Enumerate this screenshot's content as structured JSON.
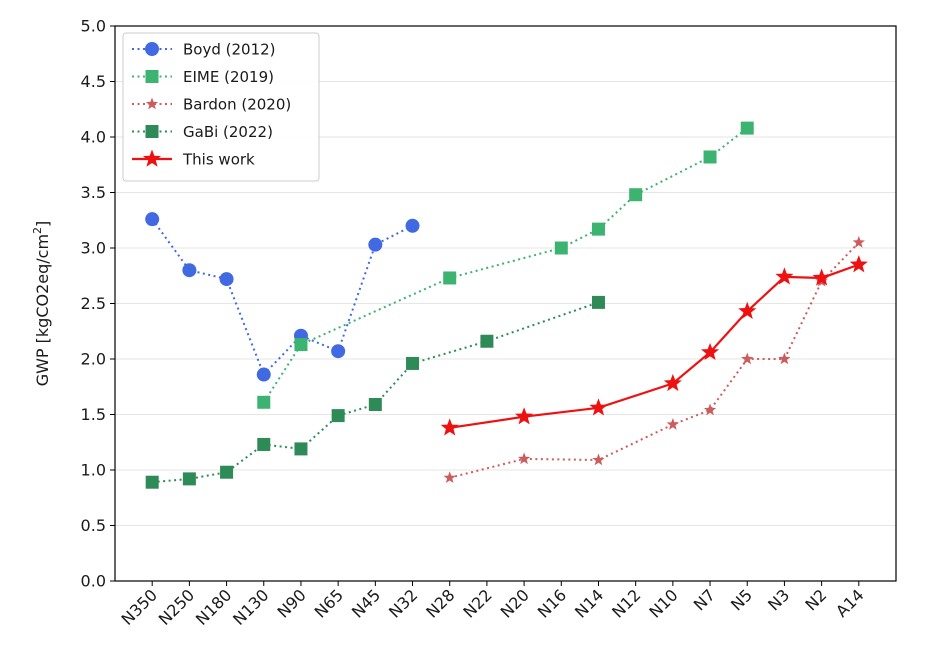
{
  "chart_data": {
    "type": "line",
    "title": "",
    "xlabel": "",
    "ylabel": "GWP [kgCO2eq/cm",
    "ylabel_sup": "2",
    "ylabel_tail": "]",
    "categories": [
      "N350",
      "N250",
      "N180",
      "N130",
      "N90",
      "N65",
      "N45",
      "N32",
      "N28",
      "N22",
      "N20",
      "N16",
      "N14",
      "N12",
      "N10",
      "N7",
      "N5",
      "N3",
      "N2",
      "A14"
    ],
    "ylim": [
      0.0,
      5.0
    ],
    "yticks": [
      "0.0",
      "0.5",
      "1.0",
      "1.5",
      "2.0",
      "2.5",
      "3.0",
      "3.5",
      "4.0",
      "4.5",
      "5.0"
    ],
    "grid": "horizontal",
    "legend_position": "top-left",
    "series": [
      {
        "name": "Boyd (2012)",
        "color": "#4169e1",
        "marker": "circle",
        "line": "dotted",
        "points": [
          [
            "N350",
            3.26
          ],
          [
            "N250",
            2.8
          ],
          [
            "N180",
            2.72
          ],
          [
            "N130",
            1.86
          ],
          [
            "N90",
            2.21
          ],
          [
            "N65",
            2.07
          ],
          [
            "N45",
            3.03
          ],
          [
            "N32",
            3.2
          ]
        ]
      },
      {
        "name": "EIME (2019)",
        "color": "#3cb371",
        "marker": "square",
        "line": "dotted",
        "points": [
          [
            "N130",
            1.61
          ],
          [
            "N90",
            2.13
          ],
          [
            "N28",
            2.73
          ],
          [
            "N16",
            3.0
          ],
          [
            "N14",
            3.17
          ],
          [
            "N12",
            3.48
          ],
          [
            "N7",
            3.82
          ],
          [
            "N5",
            4.08
          ]
        ]
      },
      {
        "name": "Bardon (2020)",
        "color": "#cd5c5c",
        "marker": "star-small",
        "line": "dotted",
        "points": [
          [
            "N28",
            0.93
          ],
          [
            "N20",
            1.1
          ],
          [
            "N14",
            1.09
          ],
          [
            "N10",
            1.41
          ],
          [
            "N7",
            1.54
          ],
          [
            "N5",
            2.0
          ],
          [
            "N3",
            2.0
          ],
          [
            "N2",
            2.7
          ],
          [
            "A14",
            3.05
          ]
        ]
      },
      {
        "name": "GaBi (2022)",
        "color": "#2e8b57",
        "marker": "square",
        "line": "dotted",
        "points": [
          [
            "N350",
            0.89
          ],
          [
            "N250",
            0.92
          ],
          [
            "N180",
            0.98
          ],
          [
            "N130",
            1.23
          ],
          [
            "N90",
            1.19
          ],
          [
            "N65",
            1.49
          ],
          [
            "N45",
            1.59
          ],
          [
            "N32",
            1.96
          ],
          [
            "N22",
            2.16
          ],
          [
            "N14",
            2.51
          ]
        ]
      },
      {
        "name": "This work",
        "color": "#ee1111",
        "marker": "star",
        "line": "solid",
        "points": [
          [
            "N28",
            1.38
          ],
          [
            "N20",
            1.48
          ],
          [
            "N14",
            1.56
          ],
          [
            "N10",
            1.78
          ],
          [
            "N7",
            2.06
          ],
          [
            "N5",
            2.43
          ],
          [
            "N3",
            2.74
          ],
          [
            "N2",
            2.73
          ],
          [
            "A14",
            2.85
          ]
        ]
      }
    ]
  }
}
